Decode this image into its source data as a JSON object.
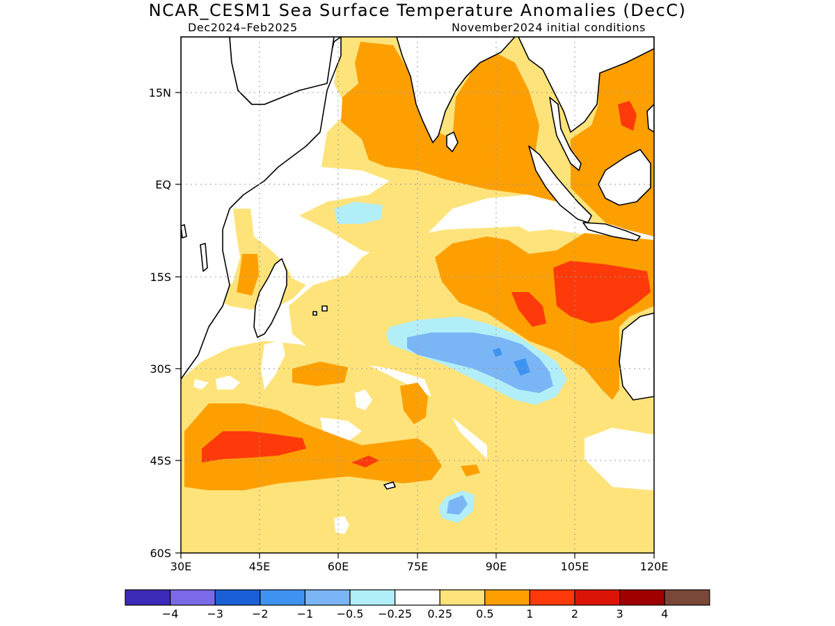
{
  "title": "NCAR_CESM1 Sea Surface Temperature Anomalies (DecC)",
  "subtitle_left": "Dec2024–Feb2025",
  "subtitle_right": "November2024 initial conditions",
  "axes": {
    "lon_range": [
      30,
      120
    ],
    "lat_range": [
      -60,
      24
    ],
    "x_ticks": [
      "30E",
      "45E",
      "60E",
      "75E",
      "90E",
      "105E",
      "120E"
    ],
    "y_ticks": [
      "15N",
      "EQ",
      "15S",
      "30S",
      "45S",
      "60S"
    ],
    "grid": "dotted"
  },
  "colorbar": {
    "colors": [
      "#3c2ab8",
      "#7b6ae8",
      "#1a5fd6",
      "#3f93f0",
      "#7ab6f6",
      "#b2eef8",
      "#ffffff",
      "#fee37b",
      "#fe9f00",
      "#fe3a0a",
      "#dc1408",
      "#a00000",
      "#7a4838"
    ],
    "labels": [
      "−4",
      "−3",
      "−2",
      "−1",
      "−0.5",
      "−0.25",
      "0.25",
      "0.5",
      "1",
      "2",
      "3",
      "4"
    ]
  },
  "palette": {
    "light_yellow": "#fee37b",
    "orange": "#fe9f00",
    "red": "#fe3a0a",
    "light_blue": "#b2eef8",
    "mid_blue": "#7ab6f6",
    "blue": "#3f93f0",
    "land": "#ffffff",
    "coast": "#000000"
  }
}
